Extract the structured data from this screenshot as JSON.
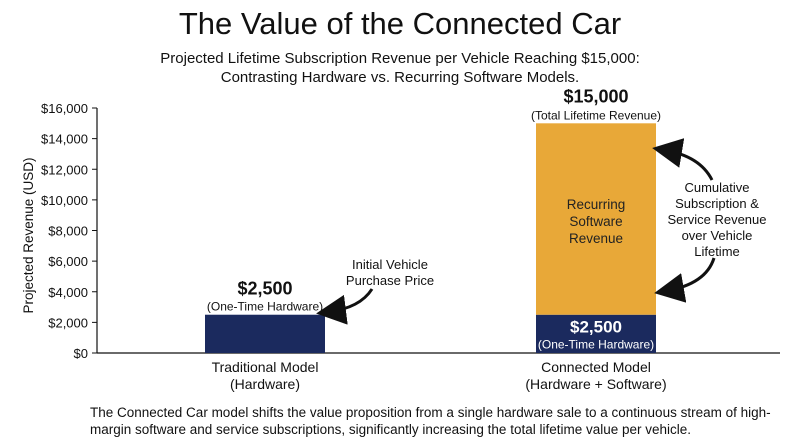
{
  "chart_data": {
    "type": "bar",
    "title": "The Value of the Connected Car",
    "subtitle": [
      "Projected Lifetime Subscription Revenue per Vehicle Reaching $15,000:",
      "Contrasting Hardware vs. Recurring Software Models."
    ],
    "ylabel": "Projected Revenue (USD)",
    "ylim": [
      0,
      16000
    ],
    "yticks": [
      0,
      2000,
      4000,
      6000,
      8000,
      10000,
      12000,
      14000,
      16000
    ],
    "ytick_labels": [
      "$0",
      "$2,000",
      "$4,000",
      "$6,000",
      "$8,000",
      "$10,000",
      "$12,000",
      "$14,000",
      "$16,000"
    ],
    "categories": [
      [
        "Traditional Model",
        "(Hardware)"
      ],
      [
        "Connected Model",
        "(Hardware + Software)"
      ]
    ],
    "series": [
      {
        "name": "One-Time Hardware",
        "values": [
          2500,
          2500
        ],
        "color": "#1b2a5e"
      },
      {
        "name": "Recurring Software Revenue",
        "values": [
          0,
          12500
        ],
        "color": "#e8a838"
      }
    ],
    "annotations": {
      "bar1_value": "$2,500",
      "bar1_sub": "(One-Time Hardware)",
      "bar2_top_value": "$15,000",
      "bar2_top_sub": "(Total Lifetime Revenue)",
      "bar2_inner_value": "$2,500",
      "bar2_inner_sub": "(One-Time Hardware)",
      "software_label": [
        "Recurring",
        "Software",
        "Revenue"
      ],
      "initial_price": [
        "Initial Vehicle",
        "Purchase Price"
      ],
      "cumulative": [
        "Cumulative",
        "Subscription &",
        "Service Revenue",
        "over Vehicle",
        "Lifetime"
      ]
    },
    "grid": false
  },
  "footer": "The Connected Car model shifts the value proposition from a single hardware sale to a continuous stream of high-margin software and service subscriptions, significantly increasing the total lifetime value per vehicle."
}
